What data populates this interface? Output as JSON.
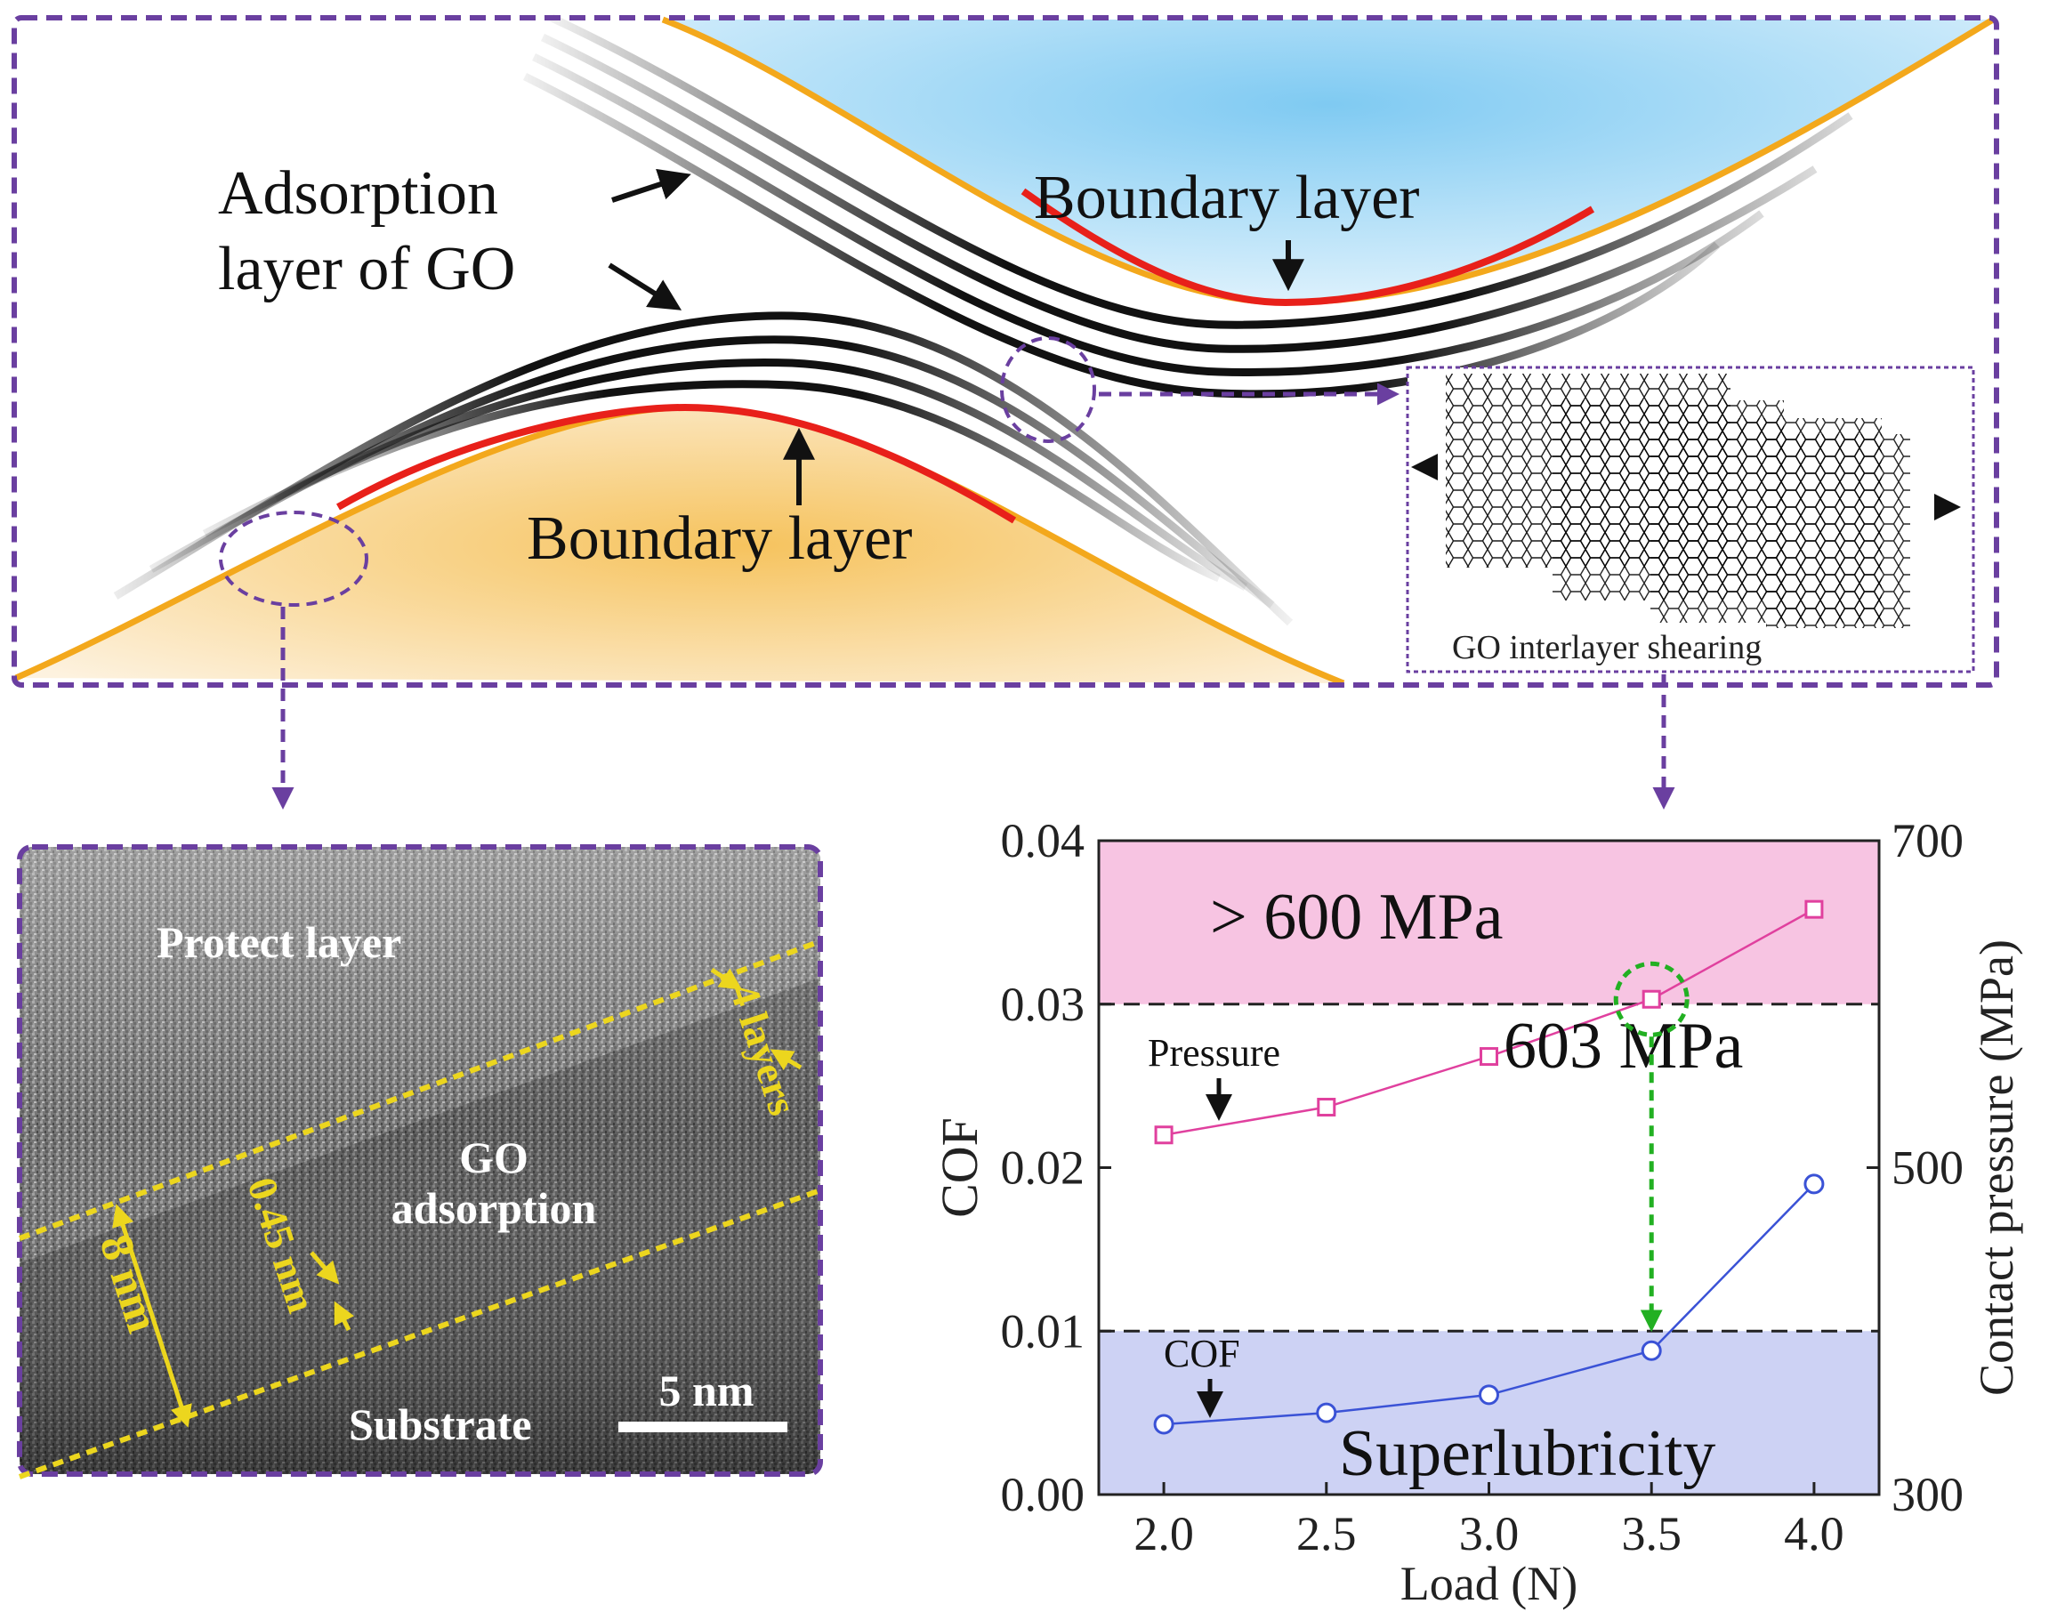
{
  "schematic": {
    "adsorption_label_line1": "Adsorption",
    "adsorption_label_line2": "layer of GO",
    "boundary_layer_top": "Boundary layer",
    "boundary_layer_bottom": "Boundary layer",
    "inset_caption": "GO interlayer shearing"
  },
  "tem": {
    "protect_layer": "Protect layer",
    "go_line1": "GO",
    "go_line2": "adsorption",
    "substrate": "Substrate",
    "thickness": "8 nm",
    "spacing": "0.45 nm",
    "layers": "4 layers",
    "scale_bar": "5 nm"
  },
  "colors": {
    "frame": "#6a3fa0",
    "upper_fill": "#7fcaf2",
    "lower_fill": "#f6c35e",
    "boundary_red": "#e8201a",
    "outline_orange": "#f3a81c",
    "pressure_series": "#e0409e",
    "cof_series": "#3a52d6",
    "pink_band": "#f7c4e2",
    "blue_band": "#cdd2f4",
    "annotation_green": "#22b022",
    "tem_marker": "#ecd61e"
  },
  "chart_data": {
    "type": "line",
    "x": [
      2.0,
      2.5,
      3.0,
      3.5,
      4.0
    ],
    "xlim": [
      1.8,
      4.2
    ],
    "xticks": [
      "2.0",
      "2.5",
      "3.0",
      "3.5",
      "4.0"
    ],
    "xlabel": "Load (N)",
    "ylabel_left": "COF",
    "ylim_left": [
      0,
      0.04
    ],
    "yticks_left": [
      "0.00",
      "0.01",
      "0.02",
      "0.03",
      "0.04"
    ],
    "ylabel_right": "Contact pressure (MPa)",
    "ylim_right": [
      300,
      700
    ],
    "yticks_right": [
      "300",
      "500",
      "700"
    ],
    "series": [
      {
        "name": "Pressure",
        "axis": "right",
        "marker": "square",
        "values": [
          520,
          537,
          568,
          603,
          658
        ]
      },
      {
        "name": "COF",
        "axis": "left",
        "marker": "circle",
        "values": [
          0.0043,
          0.005,
          0.0061,
          0.0088,
          0.019
        ]
      }
    ],
    "reference_lines": {
      "cof": 0.01,
      "pressure": 600
    },
    "annotations": {
      "pink_band": "> 600 MPa",
      "threshold": "603 MPa",
      "blue_band": "Superlubricity",
      "pressure_arrow_label": "Pressure",
      "cof_arrow_label": "COF"
    }
  }
}
